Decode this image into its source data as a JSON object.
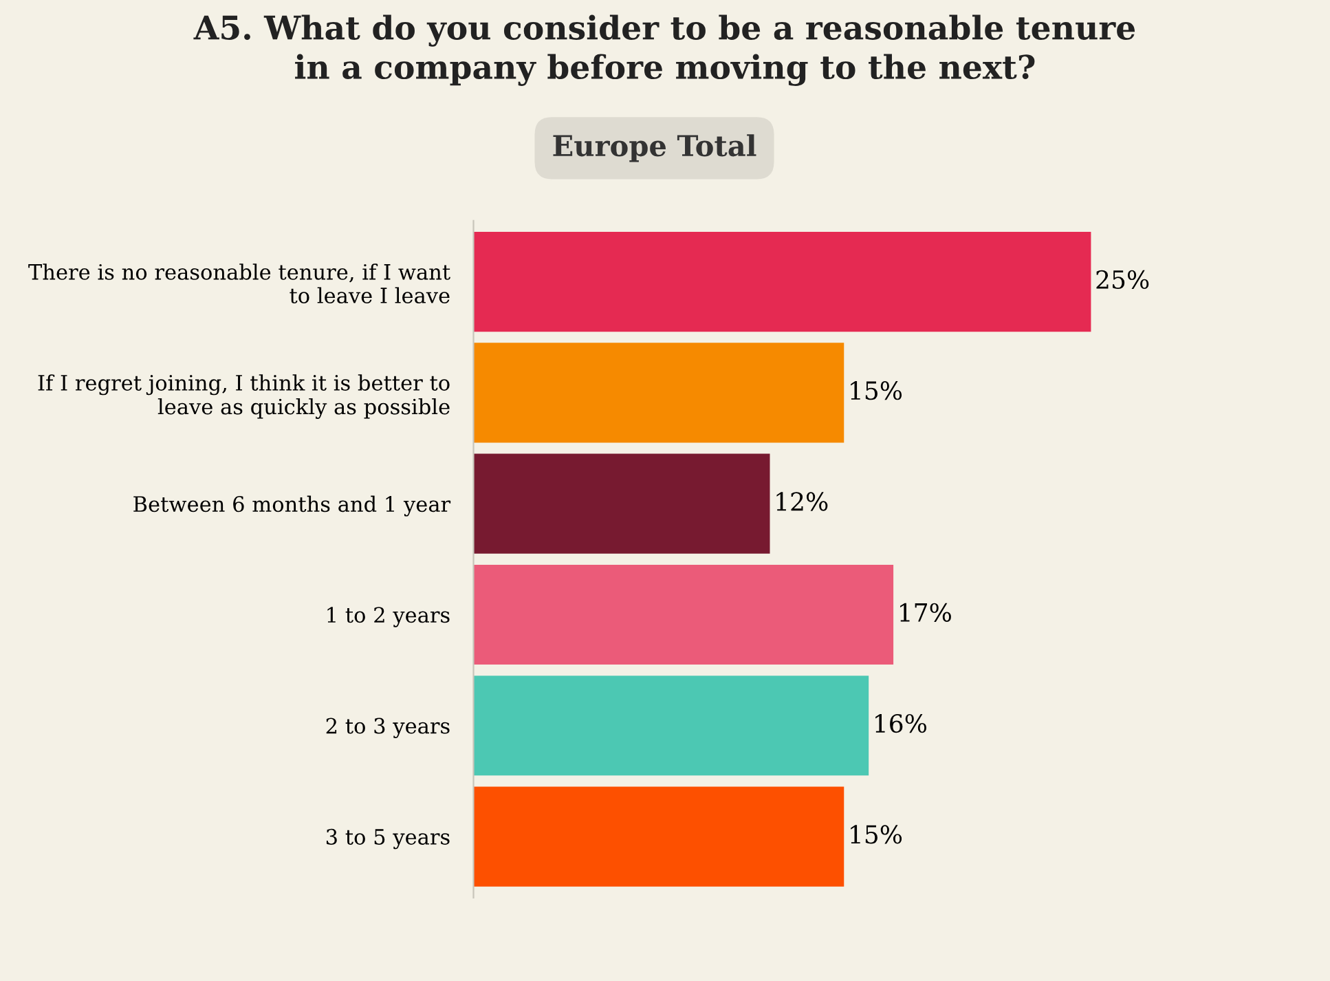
{
  "chart_data": {
    "type": "bar",
    "orientation": "horizontal",
    "title": "A5. What do you consider to be a reasonable tenure\nin a company before moving to the next?",
    "subtitle": "Europe Total",
    "categories": [
      "There is no reasonable tenure, if I want\nto leave I leave",
      "If I regret joining, I think it is better to\nleave as quickly as possible",
      "Between 6 months and 1 year",
      "1 to 2 years",
      "2 to 3 years",
      "3 to 5 years"
    ],
    "values": [
      25,
      15,
      12,
      17,
      16,
      15
    ],
    "value_labels": [
      "25%",
      "15%",
      "12%",
      "17%",
      "16%",
      "15%"
    ],
    "colors": [
      "#e52a52",
      "#f68a00",
      "#771a30",
      "#eb5b79",
      "#4cc8b3",
      "#fd5000"
    ],
    "grid": false,
    "legend": false
  }
}
